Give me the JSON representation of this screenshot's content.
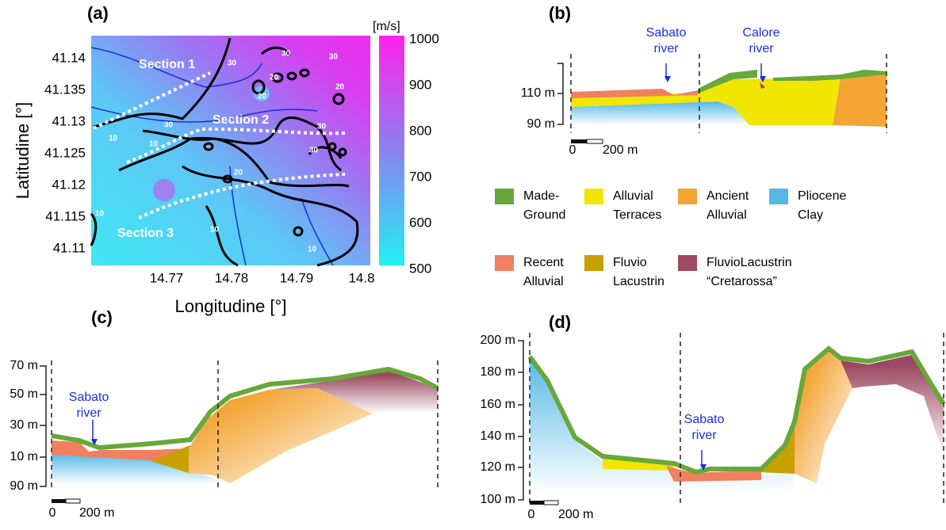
{
  "panels": {
    "a": {
      "label": "(a)",
      "y_axis_label": "Latitudine [°]",
      "x_axis_label": "Longitudine [°]",
      "yticks": [
        "41.14",
        "41.135",
        "41.13",
        "41.125",
        "41.12",
        "41.115",
        "41.11"
      ],
      "xticks": [
        "14.77",
        "14.78",
        "14.79",
        "14.8"
      ],
      "colorbar_unit": "[m/s]",
      "colorbar_ticks": [
        "1000",
        "900",
        "800",
        "700",
        "600",
        "500"
      ],
      "sections": [
        "Section 1",
        "Section 2",
        "Section 3"
      ],
      "contour_labels": [
        "30",
        "30",
        "30",
        "20",
        "20",
        "20",
        "10",
        "10",
        "30",
        "30",
        "20",
        "10",
        "10",
        "10",
        "30"
      ]
    },
    "b": {
      "label": "(b)",
      "yticks": [
        "110 m",
        "90 m"
      ],
      "scale": [
        "0",
        "200 m"
      ],
      "rivers": [
        [
          "Sabato",
          "river"
        ],
        [
          "Calore",
          "river"
        ]
      ]
    },
    "c": {
      "label": "(c)",
      "yticks": [
        "70 m",
        "50 m",
        "30 m",
        "10 m",
        "90 m"
      ],
      "scale": [
        "0",
        "200 m"
      ],
      "rivers": [
        [
          "Sabato",
          "river"
        ]
      ]
    },
    "d": {
      "label": "(d)",
      "yticks": [
        "200 m",
        "180 m",
        "160 m",
        "140 m",
        "120 m",
        "100 m"
      ],
      "scale": [
        "0",
        "200 m"
      ],
      "rivers": [
        [
          "Sabato",
          "river"
        ]
      ]
    }
  },
  "legend": [
    [
      "Made-",
      "Ground"
    ],
    [
      "Alluvial",
      "Terraces"
    ],
    [
      "Ancient",
      "Alluvial"
    ],
    [
      "Pliocene",
      "Clay"
    ],
    [
      "Recent",
      "Alluvial"
    ],
    [
      "Fluvio",
      "Lacustrin"
    ],
    [
      "FluvioLacustrin",
      "“Cretarossa”"
    ]
  ]
}
